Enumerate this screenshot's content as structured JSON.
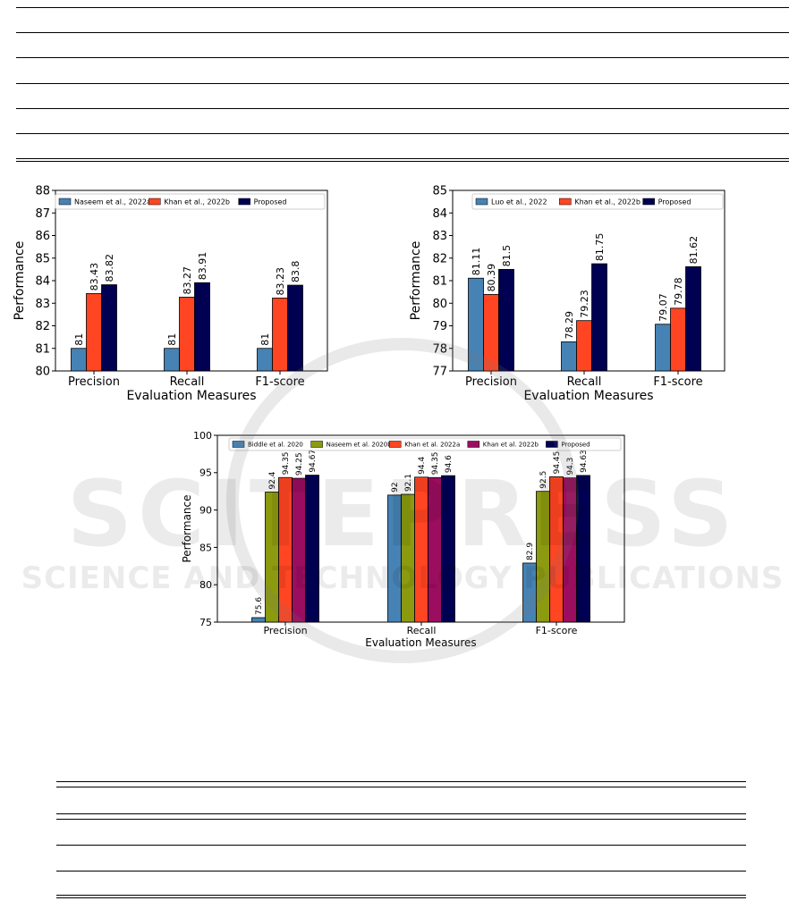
{
  "watermark": {
    "main": "SCITEPRESS",
    "sub": "SCIENCE AND TECHNOLOGY PUBLICATIONS"
  },
  "chart_data": [
    {
      "type": "bar",
      "categories": [
        "Precision",
        "Recall",
        "F1-score"
      ],
      "series": [
        {
          "name": "Naseem et al., 2022a",
          "values": [
            81,
            81,
            81
          ],
          "color": "#4682b4"
        },
        {
          "name": "Khan et al., 2022b",
          "values": [
            83.43,
            83.27,
            83.23
          ],
          "color": "#ff4522"
        },
        {
          "name": "Proposed",
          "values": [
            83.82,
            83.91,
            83.8
          ],
          "color": "#000052"
        }
      ],
      "data_labels": [
        [
          "81",
          "83.43",
          "83.82"
        ],
        [
          "81",
          "83.27",
          "83.91"
        ],
        [
          "81",
          "83.23",
          "83.8"
        ]
      ],
      "xlabel": "Evaluation Measures",
      "ylabel": "Performance",
      "ylim": [
        80,
        88
      ],
      "yticks": [
        80,
        81,
        82,
        83,
        84,
        85,
        86,
        87,
        88
      ],
      "legend": "top"
    },
    {
      "type": "bar",
      "categories": [
        "Precision",
        "Recall",
        "F1-score"
      ],
      "series": [
        {
          "name": "Luo et al., 2022",
          "values": [
            81.11,
            78.29,
            79.07
          ],
          "color": "#4682b4"
        },
        {
          "name": "Khan et al., 2022b",
          "values": [
            80.39,
            79.23,
            79.78
          ],
          "color": "#ff4522"
        },
        {
          "name": "Proposed",
          "values": [
            81.5,
            81.75,
            81.62
          ],
          "color": "#000052"
        }
      ],
      "data_labels": [
        [
          "81.11",
          "80.39",
          "81.5"
        ],
        [
          "78.29",
          "79.23",
          "81.75"
        ],
        [
          "79.07",
          "79.78",
          "81.62"
        ]
      ],
      "xlabel": "Evaluation Measures",
      "ylabel": "Performance",
      "ylim": [
        77,
        85
      ],
      "yticks": [
        77,
        78,
        79,
        80,
        81,
        82,
        83,
        84,
        85
      ],
      "legend": "top"
    },
    {
      "type": "bar",
      "categories": [
        "Precision",
        "Recall",
        "F1-score"
      ],
      "series": [
        {
          "name": "Biddle et al. 2020",
          "values": [
            75.6,
            92,
            82.9
          ],
          "color": "#4682b4"
        },
        {
          "name": "Naseem et al. 2020b",
          "values": [
            92.4,
            92.1,
            92.5
          ],
          "color": "#8b9a0f"
        },
        {
          "name": "Khan et al. 2022a",
          "values": [
            94.35,
            94.4,
            94.45
          ],
          "color": "#ff4522"
        },
        {
          "name": "Khan et al. 2022b",
          "values": [
            94.25,
            94.35,
            94.3
          ],
          "color": "#9b0d5f"
        },
        {
          "name": "Proposed",
          "values": [
            94.67,
            94.6,
            94.63
          ],
          "color": "#000052"
        }
      ],
      "data_labels": [
        [
          "75.6",
          "92.4",
          "94.35",
          "94.25",
          "94.67"
        ],
        [
          "92",
          "92.1",
          "94.4",
          "94.35",
          "94.6"
        ],
        [
          "82.9",
          "92.5",
          "94.45",
          "94.3",
          "94.63"
        ]
      ],
      "xlabel": "Evaluation Measures",
      "ylabel": "Performance",
      "ylim": [
        75,
        100
      ],
      "yticks": [
        75,
        80,
        85,
        90,
        95,
        100
      ],
      "legend": "top"
    }
  ]
}
